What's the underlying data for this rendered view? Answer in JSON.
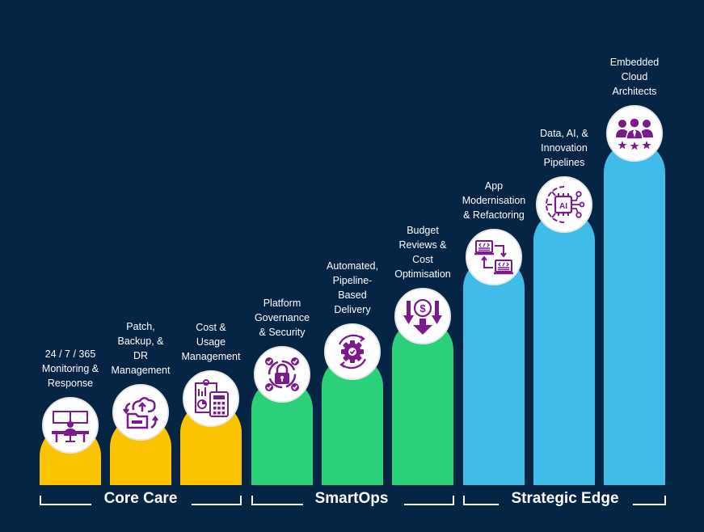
{
  "colors": {
    "background": "#062443",
    "core": "#fbc400",
    "smartops": "#2bd07b",
    "strategic": "#3fbde8",
    "icon": "#7a1a8c"
  },
  "steps": [
    {
      "label": [
        "24 / 7 / 365",
        "Monitoring &",
        "Response"
      ],
      "icon": "monitoring-desk-icon",
      "group": "core"
    },
    {
      "label": [
        "Patch,",
        "Backup, &",
        "DR",
        "Management"
      ],
      "icon": "cloud-backup-icon",
      "group": "core"
    },
    {
      "label": [
        "Cost &",
        "Usage",
        "Management"
      ],
      "icon": "cost-calculator-icon",
      "group": "core"
    },
    {
      "label": [
        "Platform",
        "Governance",
        "& Security"
      ],
      "icon": "security-lock-icon",
      "group": "smartops"
    },
    {
      "label": [
        "Automated,",
        "Pipeline-",
        "Based",
        "Delivery"
      ],
      "icon": "automation-gear-icon",
      "group": "smartops"
    },
    {
      "label": [
        "Budget",
        "Reviews &",
        "Cost",
        "Optimisation"
      ],
      "icon": "cost-reduction-icon",
      "group": "smartops"
    },
    {
      "label": [
        "App",
        "Modernisation",
        "& Refactoring"
      ],
      "icon": "code-refactor-icon",
      "group": "strategic"
    },
    {
      "label": [
        "Data, AI, &",
        "Innovation",
        "Pipelines"
      ],
      "icon": "ai-chip-icon",
      "group": "strategic"
    },
    {
      "label": [
        "Embedded",
        "Cloud",
        "Architects"
      ],
      "icon": "expert-team-icon",
      "group": "strategic"
    }
  ],
  "groups": {
    "core": "Core Care",
    "smartops": "SmartOps",
    "strategic": "Strategic Edge"
  }
}
